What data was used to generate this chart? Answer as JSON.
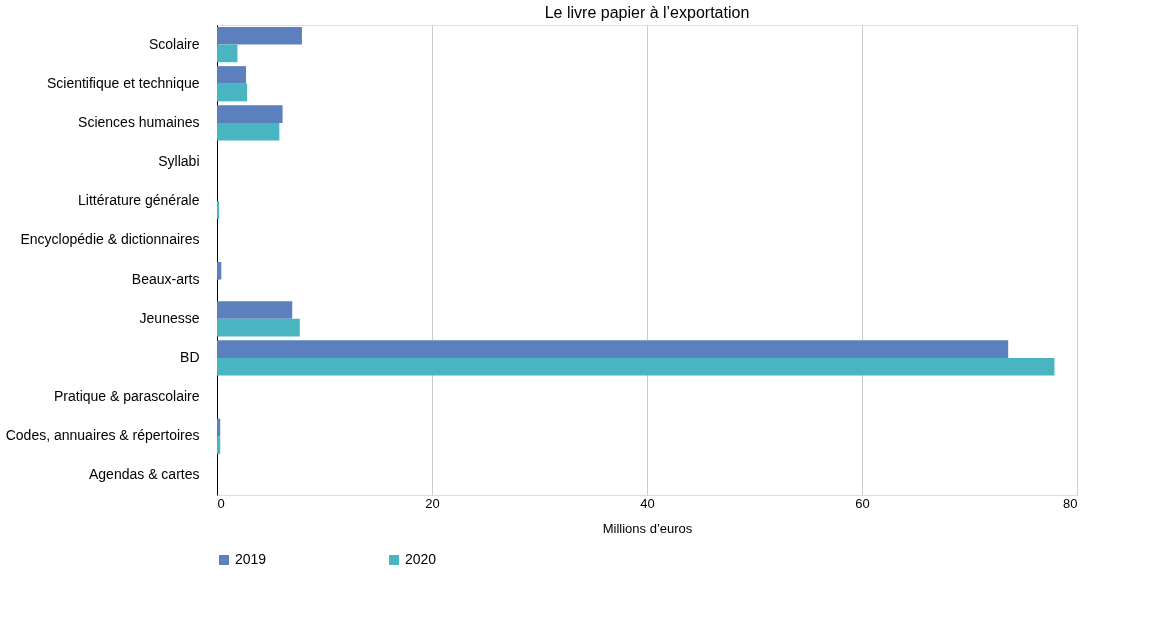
{
  "chart_data": {
    "type": "bar",
    "orientation": "horizontal",
    "title": "Le livre papier à l’exportation",
    "xlabel": "Millions d’euros",
    "categories": [
      "Scolaire",
      "Scientifique et technique",
      "Sciences humaines",
      "Syllabi",
      "Littérature générale",
      "Encyclopédie & dictionnaires",
      "Beaux-arts",
      "Jeunesse",
      "BD",
      "Pratique & parascolaire",
      "Codes, annuaires & répertoires",
      "Agendas & cartes"
    ],
    "series": [
      {
        "name": "2019",
        "color": "#5b80bd",
        "values": [
          7.9,
          2.7,
          6.1,
          null,
          null,
          null,
          0.4,
          7.0,
          73.6,
          null,
          0.3,
          null
        ]
      },
      {
        "name": "2020",
        "color": "#48b5c0",
        "values": [
          1.9,
          2.8,
          5.8,
          null,
          0.2,
          null,
          null,
          7.7,
          77.9,
          null,
          0.3,
          null
        ]
      }
    ],
    "xlim": [
      0,
      80
    ],
    "xticks": [
      0,
      20,
      40,
      60,
      80
    ],
    "grid": "x",
    "legend": "bottom"
  }
}
